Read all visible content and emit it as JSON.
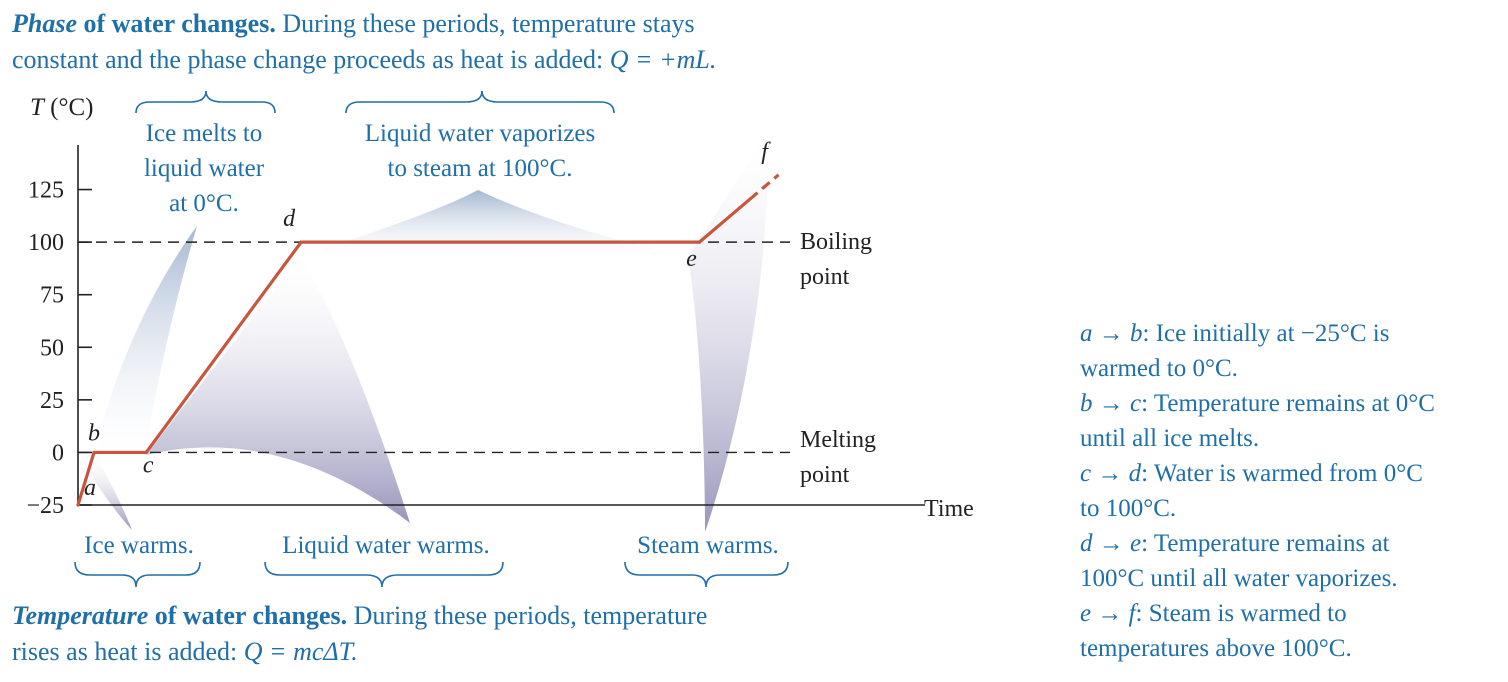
{
  "top_caption": {
    "lead_em": "Phase",
    "lead_bold": " of water changes.",
    "line1_rest": " During these periods, temperature stays",
    "line2": "constant and the phase change proceeds as heat is added: ",
    "formula": "Q = +mL."
  },
  "bottom_caption": {
    "lead_em": "Temperature",
    "lead_bold": " of water changes.",
    "line1_rest": " During these periods, temperature",
    "line2": "rises as heat is added: ",
    "formula": "Q = mcΔT."
  },
  "phase_labels": {
    "ice_melts": [
      "Ice melts to",
      "liquid water",
      "at 0°C."
    ],
    "vaporizes": [
      "Liquid water vaporizes",
      "to steam at 100°C."
    ]
  },
  "warm_labels": {
    "ice": "Ice warms.",
    "liquid": "Liquid water warms.",
    "steam": "Steam warms."
  },
  "reference_lines": {
    "boiling": [
      "Boiling",
      "point"
    ],
    "melting": [
      "Melting",
      "point"
    ]
  },
  "right_notes": [
    {
      "seg": "a → b",
      "text": ": Ice initially at −25°C is"
    },
    {
      "seg": "",
      "text": "warmed to 0°C."
    },
    {
      "seg": "b → c",
      "text": ": Temperature remains at 0°C"
    },
    {
      "seg": "",
      "text": "until all ice melts."
    },
    {
      "seg": "c → d",
      "text": ": Water is warmed from 0°C"
    },
    {
      "seg": "",
      "text": "to 100°C."
    },
    {
      "seg": "d → e",
      "text": ": Temperature remains at"
    },
    {
      "seg": "",
      "text": "100°C until all water vaporizes."
    },
    {
      "seg": "e → f",
      "text": ": Steam is warmed to"
    },
    {
      "seg": "",
      "text": "temperatures above 100°C."
    }
  ],
  "colors": {
    "curve": "#c8553d",
    "caption": "#1f6fa8",
    "axis": "#222222",
    "cone_blue": "#9fb3cf",
    "cone_purple": "#8c89b3"
  },
  "chart_data": {
    "type": "line",
    "title": "",
    "xlabel": "Time",
    "ylabel": "T (°C)",
    "ylim": [
      -25,
      140
    ],
    "yticks": [
      -25,
      0,
      25,
      50,
      75,
      100,
      125
    ],
    "ytick_labels": [
      "−25",
      "0",
      "25",
      "50",
      "75",
      "100",
      "125"
    ],
    "xlim": [
      0,
      100
    ],
    "points": [
      {
        "name": "a",
        "x": 0,
        "y": -25
      },
      {
        "name": "b",
        "x": 1.9,
        "y": 0
      },
      {
        "name": "c",
        "x": 8.1,
        "y": 0
      },
      {
        "name": "d",
        "x": 26.5,
        "y": 100
      },
      {
        "name": "e",
        "x": 73.8,
        "y": 100
      },
      {
        "name": "f",
        "x": 83.2,
        "y": 132
      }
    ],
    "dashed_tail_from": 79.8,
    "reference_lines": [
      {
        "y": 100,
        "label": "Boiling point"
      },
      {
        "y": 0,
        "label": "Melting point"
      }
    ]
  }
}
